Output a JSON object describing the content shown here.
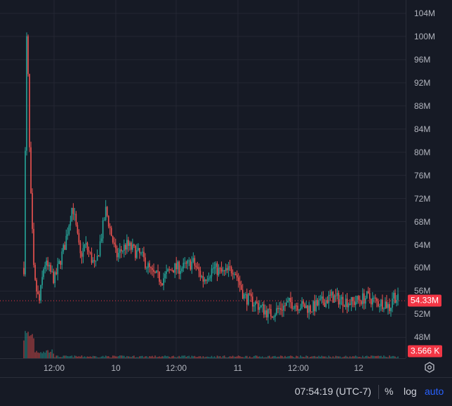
{
  "chart_data": {
    "type": "candlestick",
    "price_axis": {
      "ticks": [
        "104M",
        "100M",
        "96M",
        "92M",
        "88M",
        "84M",
        "80M",
        "76M",
        "72M",
        "68M",
        "64M",
        "60M",
        "56M",
        "52M",
        "48M"
      ],
      "tick_values": [
        104,
        100,
        96,
        92,
        88,
        84,
        80,
        76,
        72,
        68,
        64,
        60,
        56,
        52,
        48
      ],
      "unit": "M",
      "visible_range": [
        44.4,
        106.3
      ]
    },
    "time_axis": {
      "ticks": [
        "12:00",
        "10",
        "12:00",
        "11",
        "12:00",
        "12"
      ]
    },
    "last_price": {
      "label": "54.33M",
      "value": 54.33
    },
    "last_volume": {
      "label": "3.566 K",
      "value": 3566
    },
    "series_path": [
      [
        0,
        60
      ],
      [
        0.6,
        103
      ],
      [
        1.2,
        76
      ],
      [
        2,
        58
      ],
      [
        3,
        54
      ],
      [
        4,
        61
      ],
      [
        6,
        58
      ],
      [
        8,
        64
      ],
      [
        9.5,
        71
      ],
      [
        11,
        62
      ],
      [
        12,
        64
      ],
      [
        14,
        60
      ],
      [
        16,
        70
      ],
      [
        18,
        62
      ],
      [
        20,
        64
      ],
      [
        23,
        62
      ],
      [
        25,
        59
      ],
      [
        27,
        58
      ],
      [
        29,
        60
      ],
      [
        31,
        60
      ],
      [
        33,
        61
      ],
      [
        35,
        58
      ],
      [
        37,
        60
      ],
      [
        39,
        59
      ],
      [
        41,
        60
      ],
      [
        43,
        55
      ],
      [
        45,
        54
      ],
      [
        48,
        52
      ],
      [
        52,
        54
      ],
      [
        56,
        53
      ],
      [
        60,
        55
      ],
      [
        64,
        54
      ],
      [
        67,
        55
      ],
      [
        69,
        54
      ],
      [
        70.5,
        54
      ],
      [
        71.5,
        53
      ],
      [
        72,
        55.5
      ],
      [
        73,
        54.5
      ]
    ],
    "grid": true,
    "crosshair_line": true
  },
  "clock": "07:54:19 (UTC-7)",
  "bottom_bar": {
    "percent_label": "%",
    "log_label": "log",
    "auto_label": "auto"
  },
  "colors": {
    "background": "#161a25",
    "up": "#26a69a",
    "down": "#ef5350",
    "grid": "#242733",
    "axis_text": "#b2b5be",
    "badge": "#f23645",
    "auto": "#2962ff"
  },
  "icons": {
    "settings": "settings-gear-icon"
  }
}
